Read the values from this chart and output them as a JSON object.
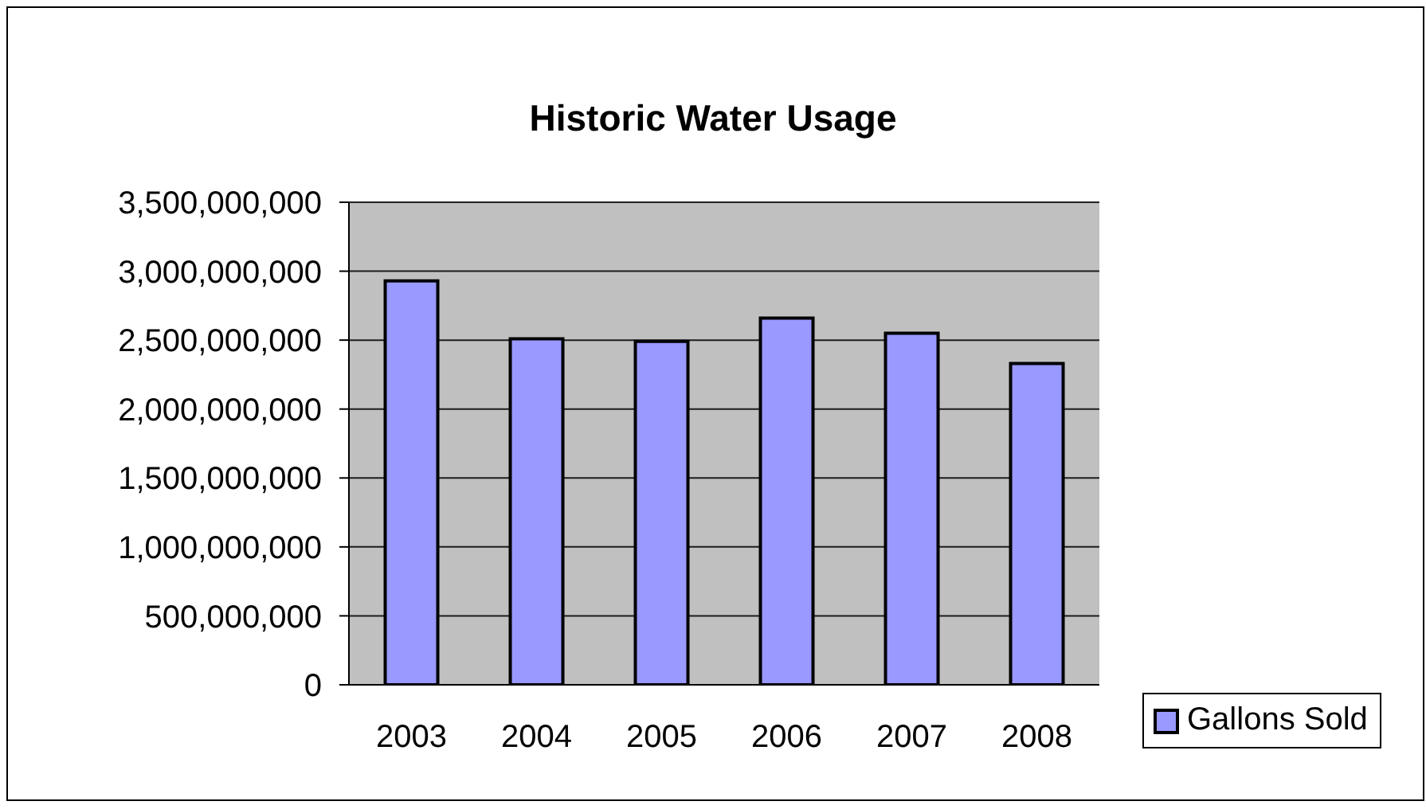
{
  "chart_data": {
    "type": "bar",
    "title": "Historic Water Usage",
    "categories": [
      "2003",
      "2004",
      "2005",
      "2006",
      "2007",
      "2008"
    ],
    "series": [
      {
        "name": "Gallons Sold",
        "color": "#9999ff",
        "values": [
          2930000000,
          2510000000,
          2490000000,
          2660000000,
          2550000000,
          2330000000
        ]
      }
    ],
    "ylim": [
      0,
      3500000000
    ],
    "yticks": [
      0,
      {
        "value": 500000000,
        "label": "500,000,000"
      },
      {
        "value": 1000000000,
        "label": "1,000,000,000"
      },
      {
        "value": 1500000000,
        "label": "1,500,000,000"
      },
      {
        "value": 2000000000,
        "label": "2,000,000,000"
      },
      {
        "value": 2500000000,
        "label": "2,500,000,000"
      },
      {
        "value": 3000000000,
        "label": "3,000,000,000"
      },
      {
        "value": 3500000000,
        "label": "3,500,000,000"
      }
    ],
    "grid": "y",
    "legend": "right"
  }
}
